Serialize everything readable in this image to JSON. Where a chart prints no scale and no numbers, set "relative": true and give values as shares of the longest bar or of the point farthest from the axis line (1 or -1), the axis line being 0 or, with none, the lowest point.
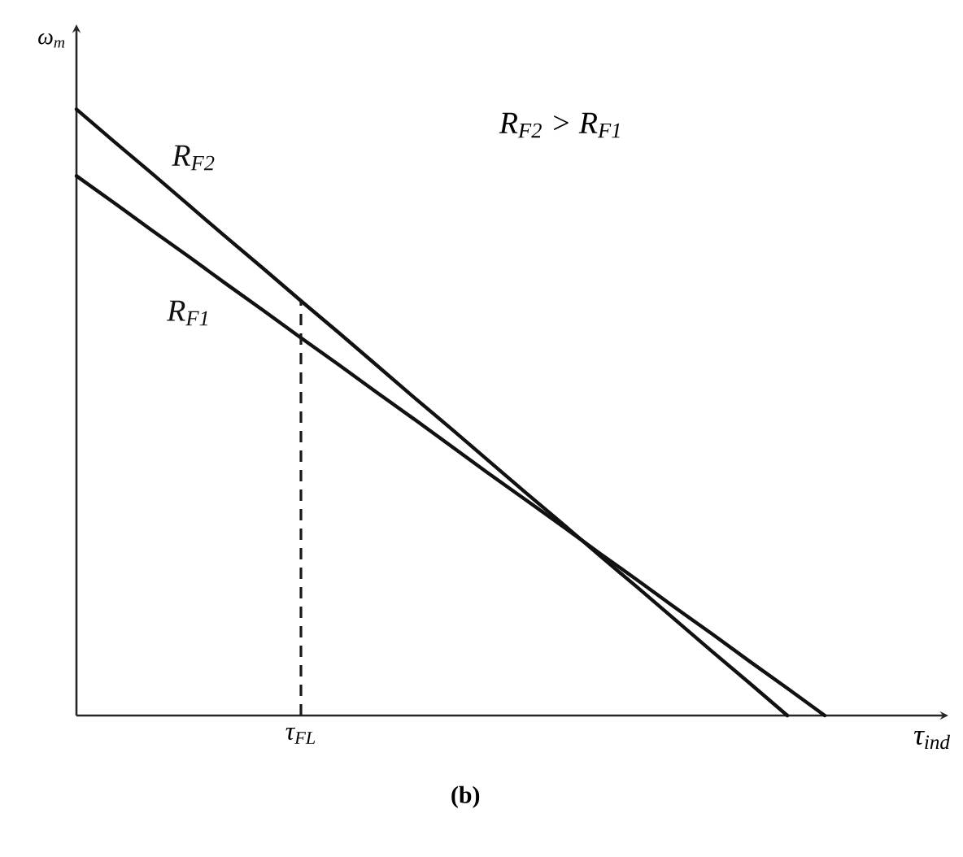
{
  "chart_data": {
    "type": "line",
    "relative": true,
    "xlabel": "τ$_{ind}$",
    "ylabel": "ω$_{m}$",
    "categories": [
      null,
      null,
      null,
      null,
      null,
      null,
      null,
      null,
      null,
      null,
      null,
      null,
      null,
      null,
      null,
      null,
      null,
      null,
      null,
      null,
      null,
      null,
      null,
      null
    ],
    "series": [
      {
        "name": "R$_{F2}$",
        "color": "#111111",
        "values": [
          1,
          0.947,
          0.895,
          0.842,
          0.789,
          0.737,
          0.684,
          0.632,
          0.579,
          0.526,
          0.474,
          0.421,
          0.368,
          0.316,
          0.263,
          0.211,
          0.158,
          0.105,
          0.053,
          0,
          null,
          null,
          null,
          null
        ]
      },
      {
        "name": "R$_{F1}$",
        "color": "#111111",
        "values": [
          0.89,
          0.846,
          0.801,
          0.757,
          0.712,
          0.668,
          0.623,
          0.579,
          0.534,
          0.49,
          0.445,
          0.4,
          0.356,
          0.312,
          0.267,
          0.223,
          0.178,
          0.134,
          0.089,
          0.045,
          0,
          null,
          null,
          null
        ]
      }
    ],
    "annotations": [
      "R$_{F2}$ > R$_{F1}$",
      "τ$_{FL}$",
      "(b)"
    ],
    "line_style": "solid"
  }
}
